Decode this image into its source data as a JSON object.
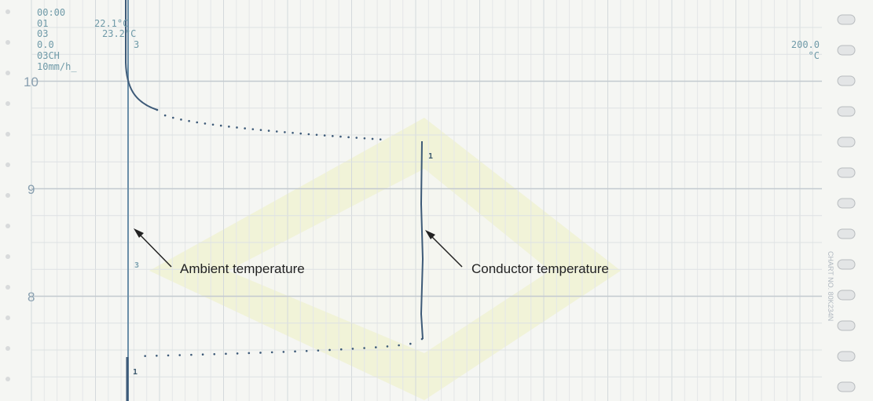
{
  "readout_left": [
    "00:00",
    "01",
    "03",
    "0.0",
    "03CH",
    "10mm/h_"
  ],
  "readout_values": [
    "22.1°C",
    "23.2°C",
    "3"
  ],
  "readout_right": [
    "200.0",
    "°C"
  ],
  "hour_labels": [
    "10",
    "9",
    "8"
  ],
  "trace_labels": [
    "1",
    "3",
    "1"
  ],
  "annotations": [
    "Ambient temperature",
    "Conductor temperature"
  ],
  "chart_number": "CHART NO. 80K234N"
}
